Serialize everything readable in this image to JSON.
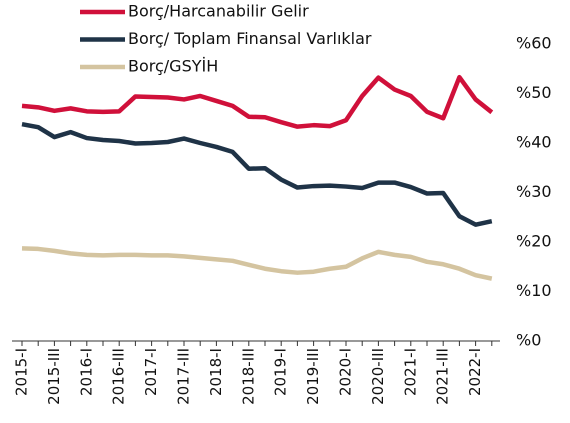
{
  "chart_data": {
    "type": "line",
    "categories": [
      "2015-I",
      null,
      "2015-III",
      null,
      "2016-I",
      null,
      "2016-III",
      null,
      "2017-I",
      null,
      "2017-III",
      null,
      "2018-I",
      null,
      "2018-III",
      null,
      "2019-I",
      null,
      "2019-III",
      null,
      "2020-I",
      null,
      "2020-III",
      null,
      "2021-I",
      null,
      "2021-III",
      null,
      "2022-I",
      null
    ],
    "series": [
      {
        "name": "Borç/Harcanabilir Gelir",
        "color": "#d0103a",
        "values": [
          47.5,
          47.2,
          46.5,
          47,
          46.4,
          46.3,
          46.4,
          49.4,
          49.3,
          49.2,
          48.8,
          49.5,
          48.5,
          47.5,
          45.3,
          45.2,
          44.2,
          43.3,
          43.6,
          43.4,
          44.6,
          49.5,
          53.2,
          50.8,
          49.5,
          46.3,
          45,
          53.3,
          48.8,
          46.2
        ]
      },
      {
        "name": "Borç/ Toplam Finansal Varlıklar",
        "color": "#1f3347",
        "values": [
          43.8,
          43.2,
          41.2,
          42.2,
          41,
          40.6,
          40.4,
          39.9,
          40,
          40.2,
          40.9,
          40,
          39.2,
          38.2,
          34.8,
          34.9,
          32.6,
          31,
          31.3,
          31.4,
          31.2,
          30.9,
          32,
          32,
          31.1,
          29.8,
          29.9,
          25.2,
          23.5,
          24.2
        ]
      },
      {
        "name": "Borç/GSYİH",
        "color": "#d4c4a0",
        "values": [
          18.7,
          18.6,
          18.2,
          17.7,
          17.4,
          17.3,
          17.4,
          17.4,
          17.3,
          17.3,
          17.1,
          16.8,
          16.5,
          16.2,
          15.4,
          14.6,
          14.1,
          13.8,
          14,
          14.6,
          15,
          16.7,
          18,
          17.4,
          17,
          16,
          15.5,
          14.6,
          13.3,
          12.6
        ]
      }
    ],
    "ylim": [
      0,
      60
    ],
    "yticks": [
      {
        "value": 0,
        "label": "%0"
      },
      {
        "value": 10,
        "label": "%10"
      },
      {
        "value": 20,
        "label": "%20"
      },
      {
        "value": 30,
        "label": "%30"
      },
      {
        "value": 40,
        "label": "%40"
      },
      {
        "value": 50,
        "label": "%50"
      },
      {
        "value": 60,
        "label": "%60"
      }
    ]
  }
}
